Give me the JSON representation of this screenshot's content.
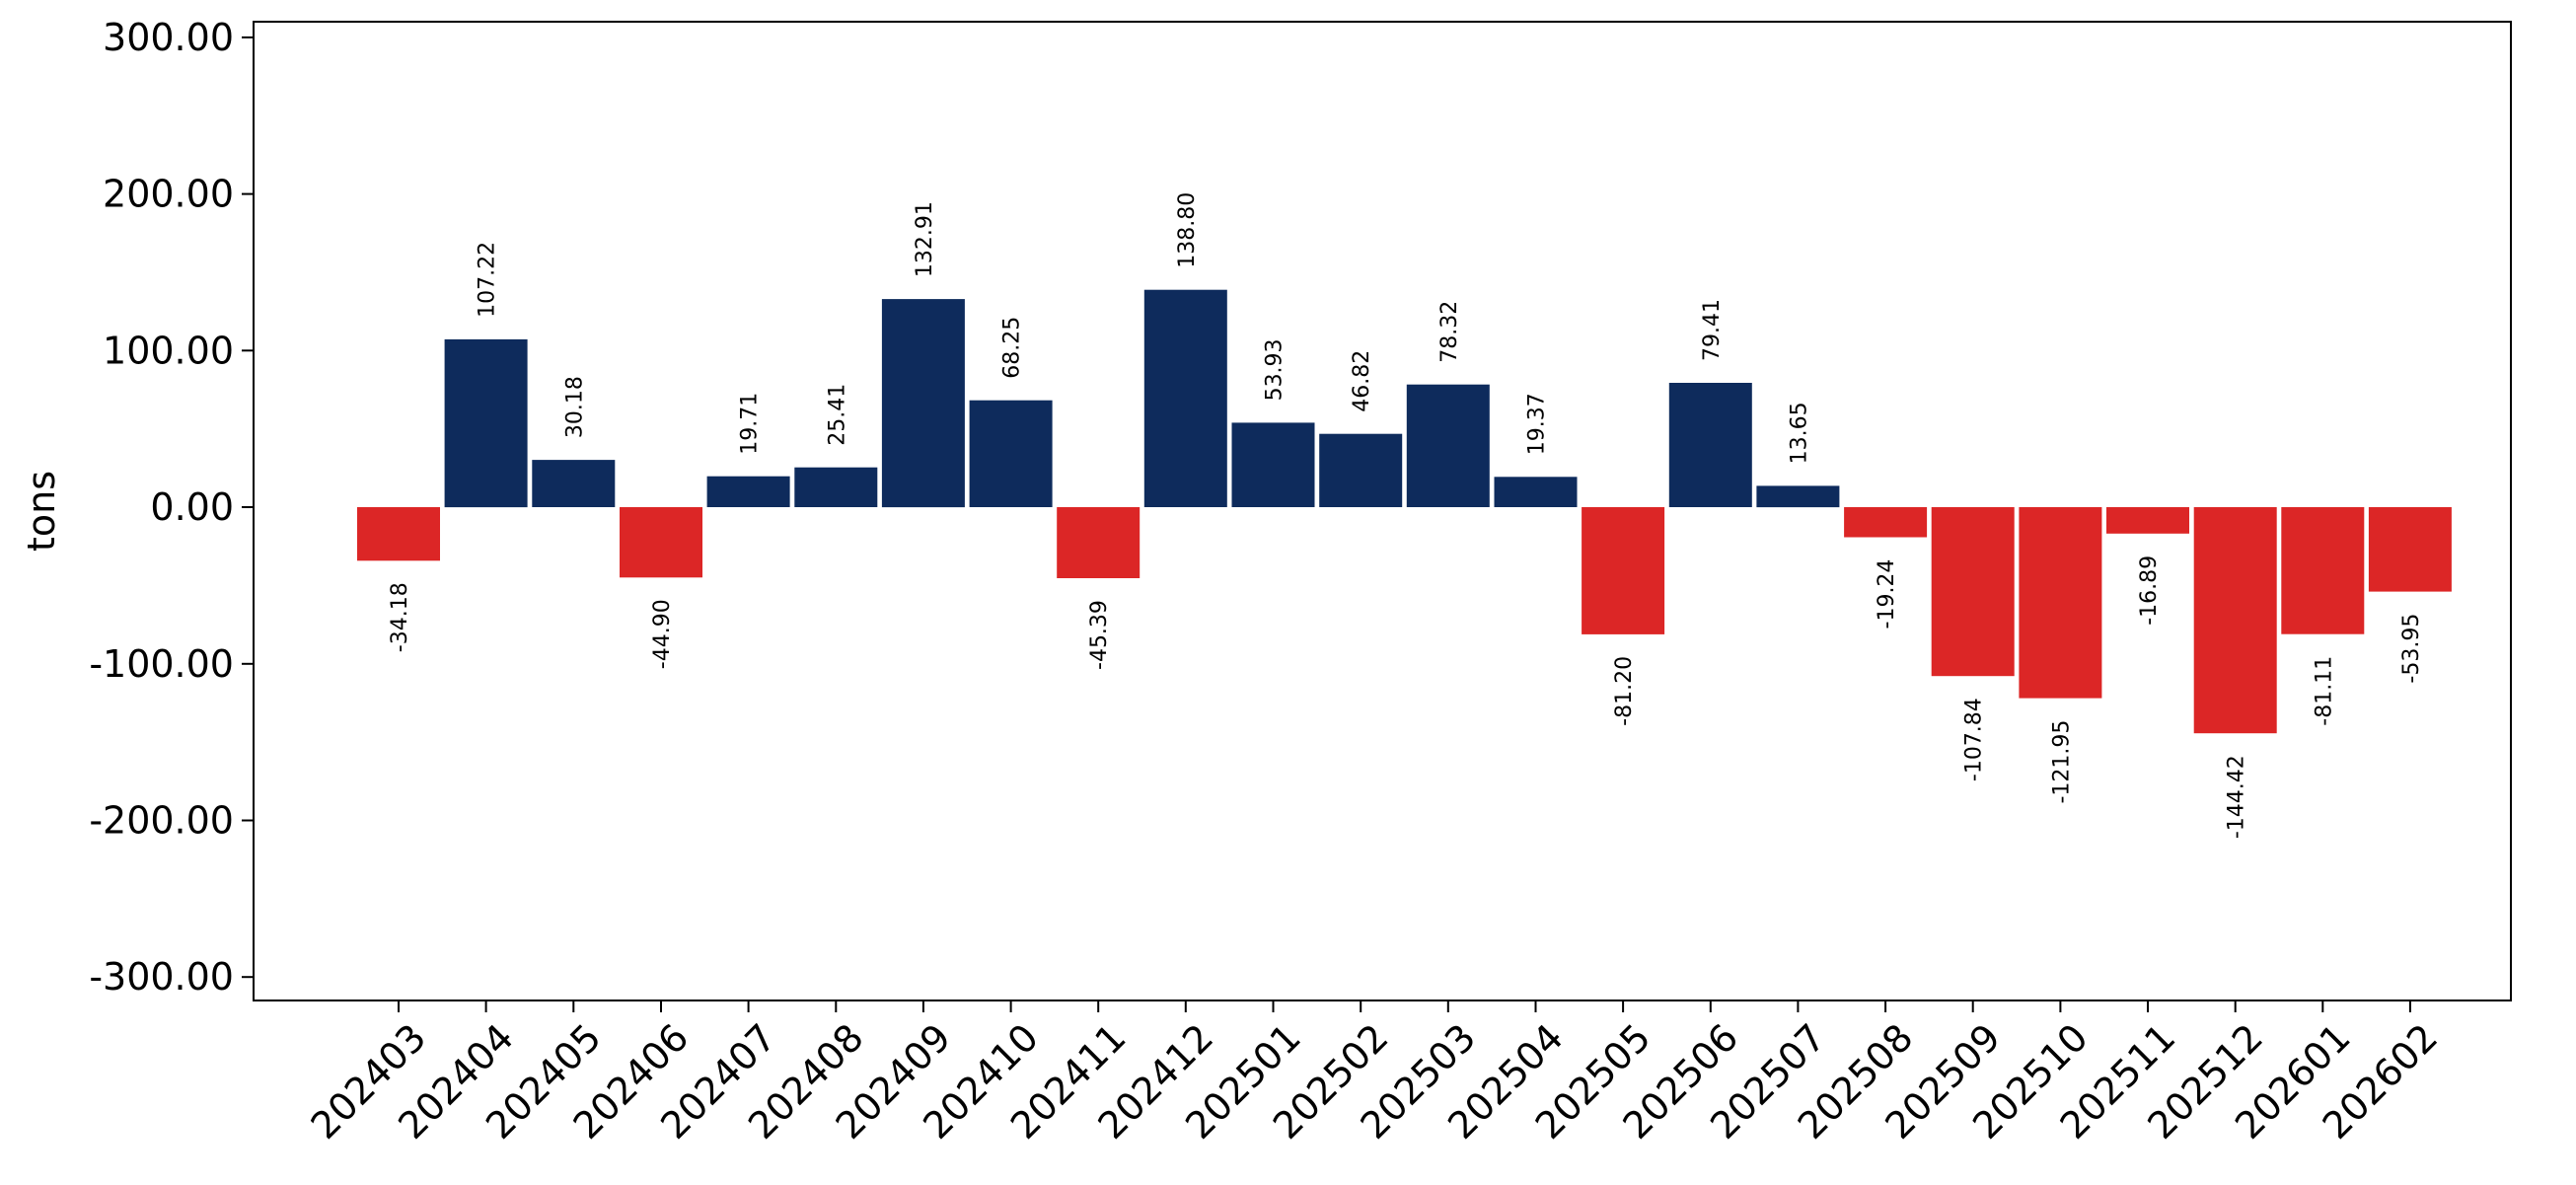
{
  "chart_data": {
    "type": "bar",
    "title": "",
    "xlabel": "",
    "ylabel": "tons",
    "ylim": [
      -315,
      310
    ],
    "yticks": [
      -300,
      -200,
      -100,
      0,
      100,
      200,
      300
    ],
    "ytick_labels": [
      "-300.00",
      "-200.00",
      "-100.00",
      "0.00",
      "100.00",
      "200.00",
      "300.00"
    ],
    "grid": false,
    "legend": "none",
    "colors": {
      "positive": "#0e2b5c",
      "negative": "#dc2626"
    },
    "categories": [
      "202403",
      "202404",
      "202405",
      "202406",
      "202407",
      "202408",
      "202409",
      "202410",
      "202411",
      "202412",
      "202501",
      "202502",
      "202503",
      "202504",
      "202505",
      "202506",
      "202507",
      "202508",
      "202509",
      "202510",
      "202511",
      "202512",
      "202601",
      "202602"
    ],
    "values": [
      -34.18,
      107.22,
      30.18,
      -44.9,
      19.71,
      25.41,
      132.91,
      68.25,
      -45.39,
      138.8,
      53.93,
      46.82,
      78.32,
      19.37,
      -81.2,
      79.41,
      13.65,
      -19.24,
      -107.84,
      -121.95,
      -16.89,
      -144.42,
      -81.11,
      -53.95
    ],
    "value_labels": [
      "-34.18",
      "107.22",
      "30.18",
      "-44.90",
      "19.71",
      "25.41",
      "132.91",
      "68.25",
      "-45.39",
      "138.80",
      "53.93",
      "46.82",
      "78.32",
      "19.37",
      "-81.20",
      "79.41",
      "13.65",
      "-19.24",
      "-107.84",
      "-121.95",
      "-16.89",
      "-144.42",
      "-81.11",
      "-53.95"
    ]
  }
}
